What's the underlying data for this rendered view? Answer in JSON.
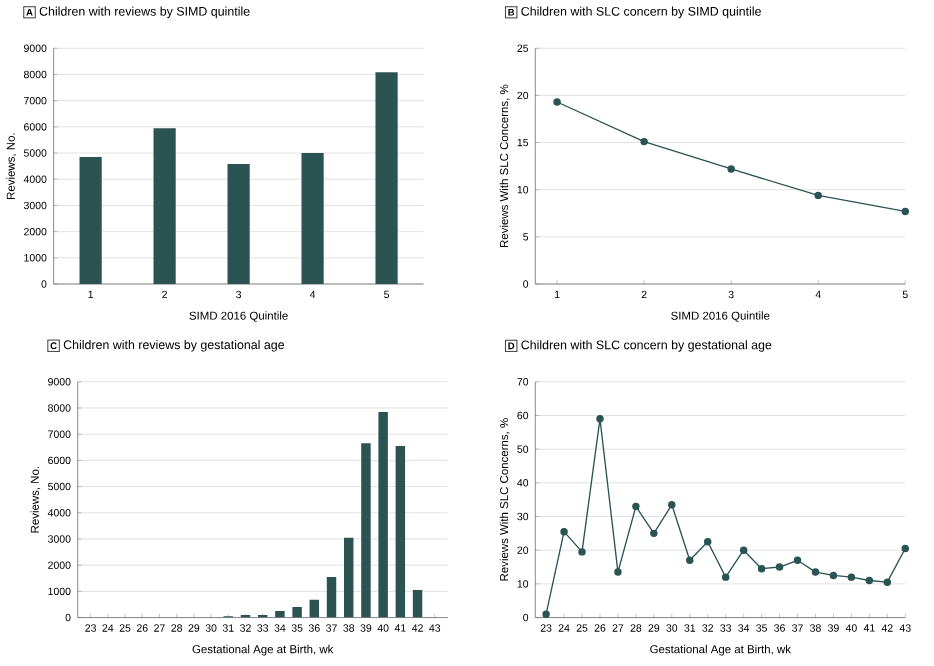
{
  "chart_data": [
    {
      "type": "bar",
      "title": "Children with reviews by SIMD quintile",
      "annotations": [
        "A"
      ],
      "xlabel": "SIMD 2016 Quintile",
      "ylabel": "Reviews, No.",
      "categories": [
        "1",
        "2",
        "3",
        "4",
        "5"
      ],
      "values": [
        4850,
        5950,
        4580,
        5000,
        8080
      ],
      "color": "#2a5352",
      "ylim": [
        0,
        9000
      ],
      "yticks": [
        0,
        1000,
        2000,
        3000,
        4000,
        5000,
        6000,
        7000,
        8000,
        9000
      ],
      "grid": "y"
    },
    {
      "type": "line",
      "title": "Children with SLC concern by SIMD quintile",
      "annotations": [
        "B"
      ],
      "xlabel": "SIMD 2016 Quintile",
      "ylabel": "Reviews With SLC Concerns, %",
      "x": [
        1,
        2,
        3,
        4,
        5
      ],
      "values": [
        19.3,
        15.1,
        12.2,
        9.4,
        7.7
      ],
      "color": "#2a5352",
      "xlim": [
        0.75,
        5
      ],
      "xticks": [
        1,
        2,
        3,
        4,
        5
      ],
      "ylim": [
        0,
        25
      ],
      "yticks": [
        0,
        5,
        10,
        15,
        20,
        25
      ],
      "grid": "y",
      "marker": "circle",
      "line_style": "solid"
    },
    {
      "type": "bar",
      "title": "Children with reviews by gestational age",
      "annotations": [
        "C"
      ],
      "xlabel": "Gestational Age at Birth, wk",
      "ylabel": "Reviews, No.",
      "categories": [
        "23",
        "24",
        "25",
        "26",
        "27",
        "28",
        "29",
        "30",
        "31",
        "32",
        "33",
        "34",
        "35",
        "36",
        "37",
        "38",
        "39",
        "40",
        "41",
        "42",
        "43"
      ],
      "values": [
        0,
        0,
        0,
        0,
        0,
        0,
        0,
        0,
        50,
        100,
        100,
        250,
        400,
        680,
        1550,
        3050,
        6650,
        7850,
        6550,
        1050,
        0
      ],
      "color": "#2a5352",
      "ylim": [
        0,
        9000
      ],
      "yticks": [
        0,
        1000,
        2000,
        3000,
        4000,
        5000,
        6000,
        7000,
        8000,
        9000
      ],
      "grid": "y"
    },
    {
      "type": "line",
      "title": "Children with SLC concern by gestational age",
      "annotations": [
        "D"
      ],
      "xlabel": "Gestational Age at Birth, wk",
      "ylabel": "Reviews With SLC Concerns, %",
      "x": [
        23,
        24,
        25,
        26,
        27,
        28,
        29,
        30,
        31,
        32,
        33,
        34,
        35,
        36,
        37,
        38,
        39,
        40,
        41,
        42,
        43
      ],
      "values": [
        1,
        25.5,
        19.5,
        59,
        13.5,
        33,
        25,
        33.5,
        17,
        22.5,
        12,
        20,
        14.5,
        15,
        17,
        13.5,
        12.5,
        12,
        11,
        10.5,
        20.5
      ],
      "color": "#2a5352",
      "xlim": [
        22.4,
        43
      ],
      "xticks": [
        23,
        24,
        25,
        26,
        27,
        28,
        29,
        30,
        31,
        32,
        33,
        34,
        35,
        36,
        37,
        38,
        39,
        40,
        41,
        42,
        43
      ],
      "ylim": [
        0,
        70
      ],
      "yticks": [
        0,
        10,
        20,
        30,
        40,
        50,
        60,
        70
      ],
      "grid": "y",
      "marker": "circle",
      "line_style": "solid"
    }
  ]
}
